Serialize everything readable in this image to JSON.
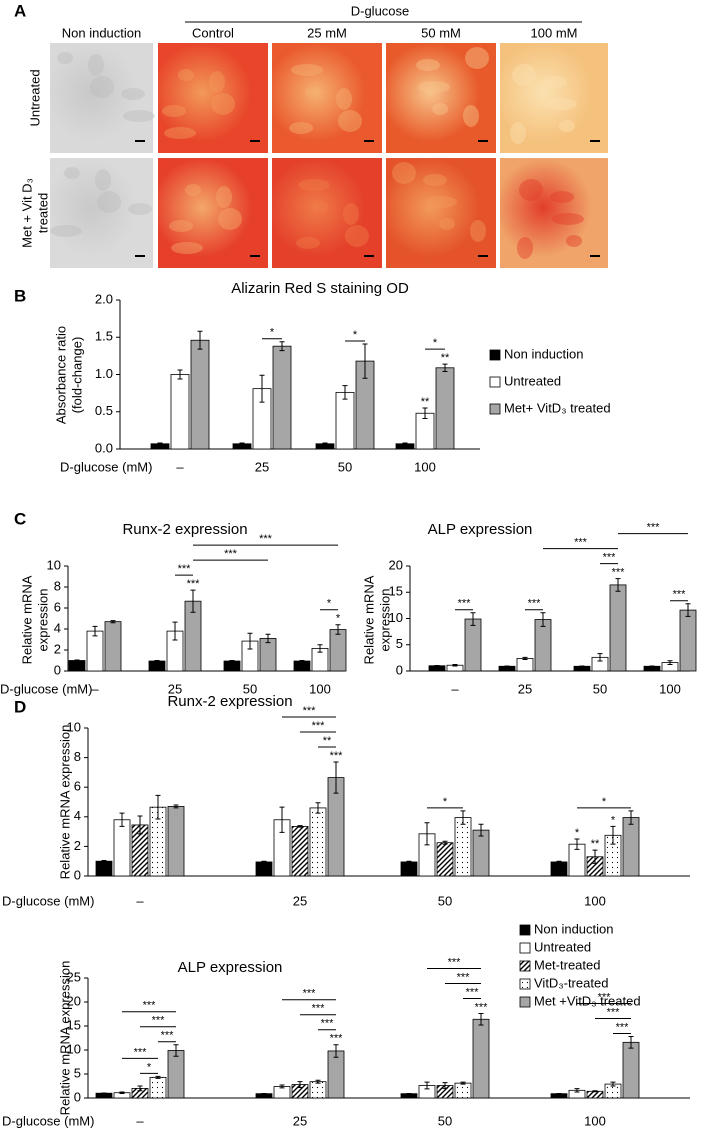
{
  "panel_a": {
    "panel_label": "A",
    "group_label": "D-glucose",
    "columns": [
      "Non induction",
      "Control",
      "25 mM",
      "50 mM",
      "100 mM"
    ],
    "rows": [
      [
        "Untreated"
      ],
      [
        "Met + Vit D₃",
        "treated"
      ]
    ]
  },
  "chart_data": [
    {
      "type": "bar",
      "panel_label": "B",
      "title": "Alizarin Red S staining OD",
      "y_label": [
        "Absorbance ratio",
        "(fold-change)"
      ],
      "x_label": "D-glucose (mM)",
      "categories": [
        "–",
        "25",
        "50",
        "100"
      ],
      "series": [
        {
          "name": "Non induction",
          "color": "#000000",
          "values": [
            0.07,
            0.07,
            0.07,
            0.07
          ],
          "errors": [
            0.01,
            0.01,
            0.01,
            0.01
          ]
        },
        {
          "name": "Untreated",
          "color": "#ffffff",
          "values": [
            1.0,
            0.81,
            0.76,
            0.48
          ],
          "errors": [
            0.06,
            0.18,
            0.09,
            0.07
          ]
        },
        {
          "name": "Met+ VitD₃ treated",
          "color": "#a6a6a6",
          "values": [
            1.46,
            1.38,
            1.18,
            1.09
          ],
          "errors": [
            0.12,
            0.06,
            0.23,
            0.05
          ]
        }
      ],
      "ylim": [
        0,
        2
      ],
      "yticks": [
        {
          "value": 0,
          "label": "0.0"
        },
        0.5,
        {
          "value": 1,
          "label": "1.0"
        },
        1.5,
        {
          "value": 2,
          "label": "2.0"
        }
      ],
      "stars": [
        {
          "label": "**",
          "at": [
            3,
            1
          ]
        },
        {
          "label": "**",
          "at": [
            3,
            2
          ]
        }
      ],
      "brackets": [
        {
          "label": "*",
          "from": [
            1,
            1
          ],
          "to": [
            1,
            2
          ]
        },
        {
          "label": "*",
          "from": [
            2,
            1
          ],
          "to": [
            2,
            2
          ]
        },
        {
          "label": "*",
          "from": [
            3,
            1
          ],
          "to": [
            3,
            2
          ]
        }
      ],
      "legend": "right"
    },
    {
      "type": "bar",
      "panel_label": "C",
      "title": "Runx-2 expression",
      "y_label": [
        "Relative mRNA",
        "expression"
      ],
      "x_label": "D-glucose (mM)",
      "categories": [
        "–",
        "25",
        "50",
        "100"
      ],
      "series": [
        {
          "color": "#000000",
          "values": [
            1.0,
            0.95,
            0.95,
            0.95
          ],
          "errors": [
            0.05,
            0.05,
            0.05,
            0.05
          ]
        },
        {
          "color": "#ffffff",
          "values": [
            3.8,
            3.8,
            2.85,
            2.15
          ],
          "errors": [
            0.45,
            0.85,
            0.75,
            0.35
          ]
        },
        {
          "color": "#a6a6a6",
          "values": [
            4.7,
            6.65,
            3.1,
            3.95
          ],
          "errors": [
            0.1,
            1.05,
            0.4,
            0.45
          ]
        }
      ],
      "ylim": [
        0,
        10
      ],
      "yticks": [
        0,
        2,
        4,
        6,
        8,
        10
      ],
      "stars": [
        {
          "label": "***",
          "at": [
            1,
            2
          ]
        },
        {
          "label": "*",
          "at": [
            3,
            2
          ]
        }
      ],
      "brackets": [
        {
          "label": "***",
          "from": [
            1,
            1
          ],
          "to": [
            1,
            2
          ]
        },
        {
          "label": "*",
          "from": [
            3,
            1
          ],
          "to": [
            3,
            2
          ]
        },
        {
          "label": "***",
          "from": [
            1,
            2
          ],
          "to": [
            2,
            2
          ]
        },
        {
          "label": "***",
          "from": [
            1,
            2
          ],
          "to": [
            3,
            2
          ]
        }
      ]
    },
    {
      "type": "bar",
      "title": "ALP expression",
      "y_label": [
        "Relative mRNA",
        "expression"
      ],
      "categories": [
        "–",
        "25",
        "50",
        "100"
      ],
      "series": [
        {
          "color": "#000000",
          "values": [
            1.0,
            0.9,
            0.9,
            0.9
          ],
          "errors": [
            0.05,
            0.05,
            0.05,
            0.05
          ]
        },
        {
          "color": "#ffffff",
          "values": [
            1.1,
            2.4,
            2.6,
            1.6
          ],
          "errors": [
            0.15,
            0.2,
            0.7,
            0.35
          ]
        },
        {
          "color": "#a6a6a6",
          "values": [
            9.9,
            9.8,
            16.4,
            11.6
          ],
          "errors": [
            1.2,
            1.3,
            1.2,
            1.2
          ]
        }
      ],
      "ylim": [
        0,
        20
      ],
      "yticks": [
        0,
        5,
        10,
        15,
        20
      ],
      "stars": [
        {
          "label": "***",
          "at": [
            2,
            2
          ]
        }
      ],
      "brackets": [
        {
          "label": "***",
          "from": [
            0,
            1
          ],
          "to": [
            0,
            2
          ]
        },
        {
          "label": "***",
          "from": [
            1,
            1
          ],
          "to": [
            1,
            2
          ]
        },
        {
          "label": "***",
          "from": [
            2,
            1
          ],
          "to": [
            2,
            2
          ]
        },
        {
          "label": "***",
          "from": [
            3,
            1
          ],
          "to": [
            3,
            2
          ]
        },
        {
          "label": "***",
          "from": [
            1,
            2
          ],
          "to": [
            2,
            2
          ]
        },
        {
          "label": "***",
          "from": [
            2,
            2
          ],
          "to": [
            3,
            2
          ]
        }
      ]
    },
    {
      "type": "bar",
      "panel_label": "D",
      "title": "Runx-2 expression",
      "y_label": [
        "Relative mRNA expression"
      ],
      "x_label": "D-glucose (mM)",
      "categories": [
        "–",
        "25",
        "50",
        "100"
      ],
      "series": [
        {
          "color": "#000000",
          "values": [
            1.0,
            0.95,
            0.95,
            0.95
          ],
          "errors": [
            0.05,
            0.05,
            0.05,
            0.05
          ]
        },
        {
          "color": "#ffffff",
          "values": [
            3.8,
            3.8,
            2.85,
            2.15
          ],
          "errors": [
            0.45,
            0.85,
            0.75,
            0.35
          ]
        },
        {
          "color": "#ffffff",
          "pattern": "hatch",
          "values": [
            3.45,
            3.35,
            2.25,
            1.3
          ],
          "errors": [
            0.6,
            0.05,
            0.1,
            0.45
          ]
        },
        {
          "color": "#ffffff",
          "pattern": "dots",
          "values": [
            4.65,
            4.6,
            3.95,
            2.75
          ],
          "errors": [
            0.8,
            0.35,
            0.45,
            0.6
          ]
        },
        {
          "color": "#a6a6a6",
          "values": [
            4.7,
            6.65,
            3.1,
            3.95
          ],
          "errors": [
            0.1,
            1.05,
            0.4,
            0.45
          ]
        }
      ],
      "ylim": [
        0,
        10
      ],
      "yticks": [
        0,
        2,
        4,
        6,
        8,
        10
      ],
      "stars": [
        {
          "label": "***",
          "at": [
            1,
            4
          ]
        },
        {
          "label": "*",
          "at": [
            3,
            1
          ]
        },
        {
          "label": "**",
          "at": [
            3,
            2
          ]
        },
        {
          "label": "*",
          "at": [
            3,
            3
          ]
        }
      ],
      "brackets": [
        {
          "label": "**",
          "from": [
            1,
            3
          ],
          "to": [
            1,
            4
          ]
        },
        {
          "label": "***",
          "from": [
            1,
            2
          ],
          "to": [
            1,
            4
          ]
        },
        {
          "label": "***",
          "from": [
            1,
            1
          ],
          "to": [
            1,
            4
          ]
        },
        {
          "label": "*",
          "from": [
            2,
            1
          ],
          "to": [
            2,
            3
          ]
        },
        {
          "label": "*",
          "from": [
            3,
            1
          ],
          "to": [
            3,
            4
          ]
        }
      ]
    },
    {
      "type": "bar",
      "title": "ALP expression",
      "y_label": [
        "Relative mRNA expression"
      ],
      "x_label": "D-glucose (mM)",
      "categories": [
        "–",
        "25",
        "50",
        "100"
      ],
      "series": [
        {
          "name": "Non induction",
          "color": "#000000",
          "values": [
            1.0,
            0.9,
            0.9,
            0.9
          ],
          "errors": [
            0.05,
            0.05,
            0.05,
            0.05
          ]
        },
        {
          "name": "Untreated",
          "color": "#ffffff",
          "values": [
            1.1,
            2.4,
            2.6,
            1.6
          ],
          "errors": [
            0.15,
            0.3,
            0.7,
            0.35
          ]
        },
        {
          "name": "Met-treated",
          "color": "#ffffff",
          "pattern": "hatch",
          "values": [
            2.0,
            2.8,
            2.6,
            1.4
          ],
          "errors": [
            0.5,
            0.6,
            0.6,
            0.1
          ]
        },
        {
          "name": "VitD₃-treated",
          "color": "#ffffff",
          "pattern": "dots",
          "values": [
            4.3,
            3.4,
            3.1,
            2.9
          ],
          "errors": [
            0.2,
            0.3,
            0.2,
            0.4
          ]
        },
        {
          "name": "Met +VitD₃ treated",
          "color": "#a6a6a6",
          "values": [
            9.9,
            9.8,
            16.4,
            11.6
          ],
          "errors": [
            1.2,
            1.3,
            1.2,
            1.2
          ]
        }
      ],
      "ylim": [
        0,
        25
      ],
      "yticks": [
        0,
        5,
        10,
        15,
        20,
        25
      ],
      "stars": [
        {
          "label": "***",
          "at": [
            1,
            4
          ]
        },
        {
          "label": "***",
          "at": [
            2,
            4
          ]
        }
      ],
      "brackets": [
        {
          "label": "*",
          "from": [
            0,
            2
          ],
          "to": [
            0,
            3
          ]
        },
        {
          "label": "***",
          "from": [
            0,
            1
          ],
          "to": [
            0,
            3
          ]
        },
        {
          "label": "***",
          "from": [
            0,
            3
          ],
          "to": [
            0,
            4
          ]
        },
        {
          "label": "***",
          "from": [
            0,
            2
          ],
          "to": [
            0,
            4
          ]
        },
        {
          "label": "***",
          "from": [
            0,
            1
          ],
          "to": [
            0,
            4
          ]
        },
        {
          "label": "***",
          "from": [
            1,
            3
          ],
          "to": [
            1,
            4
          ]
        },
        {
          "label": "***",
          "from": [
            1,
            2
          ],
          "to": [
            1,
            4
          ]
        },
        {
          "label": "***",
          "from": [
            1,
            1
          ],
          "to": [
            1,
            4
          ]
        },
        {
          "label": "***",
          "from": [
            2,
            3
          ],
          "to": [
            2,
            4
          ]
        },
        {
          "label": "***",
          "from": [
            2,
            2
          ],
          "to": [
            2,
            4
          ]
        },
        {
          "label": "***",
          "from": [
            2,
            1
          ],
          "to": [
            2,
            4
          ]
        },
        {
          "label": "***",
          "from": [
            3,
            3
          ],
          "to": [
            3,
            4
          ]
        },
        {
          "label": "***",
          "from": [
            3,
            2
          ],
          "to": [
            3,
            4
          ]
        },
        {
          "label": "***",
          "from": [
            3,
            1
          ],
          "to": [
            3,
            4
          ]
        }
      ],
      "legend": "right"
    }
  ]
}
